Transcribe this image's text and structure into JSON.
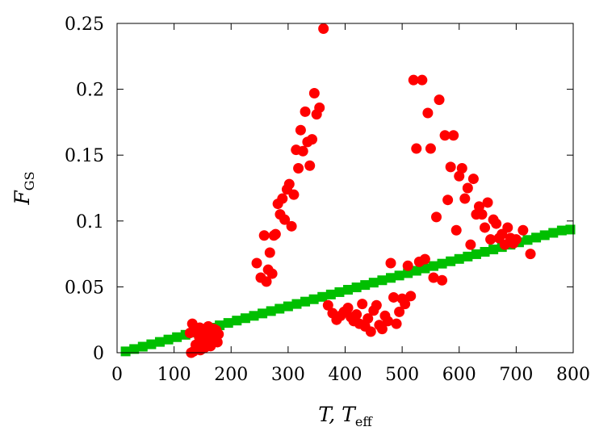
{
  "chart_data": {
    "type": "scatter",
    "title": "",
    "xlabel": "T, T",
    "xlabel_main": "T, T",
    "xlabel_sub": "eff",
    "ylabel": "F",
    "ylabel_main": "F",
    "ylabel_sub": "GS",
    "xlim": [
      0,
      800
    ],
    "ylim": [
      0,
      0.25
    ],
    "xticks": [
      0,
      100,
      200,
      300,
      400,
      500,
      600,
      700,
      800
    ],
    "xtick_labels": [
      "0",
      "100",
      "200",
      "300",
      "400",
      "500",
      "600",
      "700",
      "800"
    ],
    "yticks": [
      0,
      0.05,
      0.1,
      0.15,
      0.2,
      0.25
    ],
    "ytick_labels": [
      "0",
      "0.05",
      "0.1",
      "0.15",
      "0.2",
      "0.25"
    ],
    "grid": false,
    "legend": "none",
    "series": [
      {
        "marker": "square",
        "color": "#00bf00",
        "x": [
          15,
          30,
          45,
          60,
          75,
          90,
          105,
          120,
          135,
          150,
          165,
          180,
          195,
          210,
          225,
          240,
          255,
          270,
          285,
          300,
          315,
          330,
          345,
          360,
          375,
          390,
          405,
          420,
          435,
          450,
          465,
          480,
          495,
          510,
          525,
          540,
          555,
          570,
          585,
          600,
          615,
          630,
          645,
          660,
          675,
          690,
          705,
          720,
          735,
          750,
          765,
          780,
          795
        ],
        "y": [
          0.001,
          0.0028,
          0.0046,
          0.0064,
          0.0082,
          0.01,
          0.0118,
          0.0136,
          0.0154,
          0.0172,
          0.019,
          0.0208,
          0.0226,
          0.0244,
          0.0262,
          0.028,
          0.0298,
          0.0316,
          0.0334,
          0.0352,
          0.037,
          0.0388,
          0.0406,
          0.0424,
          0.0442,
          0.046,
          0.0478,
          0.0496,
          0.0514,
          0.0532,
          0.055,
          0.0568,
          0.0586,
          0.0604,
          0.0622,
          0.064,
          0.0658,
          0.0676,
          0.0694,
          0.0712,
          0.073,
          0.0748,
          0.0766,
          0.0784,
          0.0802,
          0.082,
          0.0838,
          0.0856,
          0.0874,
          0.0892,
          0.091,
          0.0928,
          0.0935
        ]
      },
      {
        "marker": "circle",
        "color": "#ff0000",
        "x": [
          128,
          132,
          136,
          140,
          144,
          148,
          152,
          156,
          160,
          164,
          168,
          172,
          176,
          130,
          138,
          146,
          154,
          162,
          170,
          178,
          134,
          142,
          150,
          158,
          166,
          174,
          145,
          155,
          165,
          245,
          252,
          258,
          262,
          265,
          268,
          272,
          275,
          278,
          282,
          286,
          290,
          294,
          298,
          302,
          306,
          310,
          314,
          318,
          322,
          326,
          330,
          334,
          338,
          342,
          346,
          350,
          355,
          362,
          370,
          378,
          385,
          392,
          398,
          405,
          410,
          415,
          420,
          425,
          430,
          435,
          440,
          445,
          450,
          455,
          460,
          465,
          470,
          475,
          480,
          485,
          490,
          495,
          500,
          505,
          510,
          515,
          520,
          525,
          530,
          535,
          540,
          545,
          550,
          555,
          560,
          565,
          570,
          575,
          580,
          585,
          590,
          595,
          600,
          605,
          610,
          615,
          620,
          625,
          630,
          635,
          640,
          645,
          650,
          655,
          660,
          665,
          670,
          675,
          680,
          685,
          690,
          695,
          700,
          712,
          725
        ],
        "y": [
          0.015,
          0.022,
          0.018,
          0.005,
          0.012,
          0.003,
          0.008,
          0.015,
          0.02,
          0.005,
          0.012,
          0.016,
          0.008,
          0.0,
          0.006,
          0.002,
          0.004,
          0.01,
          0.018,
          0.014,
          0.001,
          0.007,
          0.003,
          0.009,
          0.013,
          0.017,
          0.019,
          0.006,
          0.011,
          0.068,
          0.057,
          0.089,
          0.054,
          0.063,
          0.076,
          0.06,
          0.089,
          0.09,
          0.113,
          0.105,
          0.117,
          0.101,
          0.124,
          0.128,
          0.096,
          0.12,
          0.154,
          0.14,
          0.169,
          0.153,
          0.183,
          0.16,
          0.142,
          0.162,
          0.197,
          0.181,
          0.186,
          0.246,
          0.036,
          0.03,
          0.025,
          0.028,
          0.031,
          0.034,
          0.027,
          0.024,
          0.029,
          0.022,
          0.037,
          0.02,
          0.026,
          0.016,
          0.032,
          0.036,
          0.021,
          0.018,
          0.028,
          0.024,
          0.068,
          0.042,
          0.022,
          0.031,
          0.041,
          0.037,
          0.066,
          0.043,
          0.207,
          0.155,
          0.069,
          0.207,
          0.071,
          0.182,
          0.155,
          0.057,
          0.103,
          0.192,
          0.055,
          0.165,
          0.116,
          0.141,
          0.165,
          0.093,
          0.134,
          0.14,
          0.117,
          0.125,
          0.082,
          0.132,
          0.105,
          0.111,
          0.105,
          0.095,
          0.114,
          0.086,
          0.101,
          0.098,
          0.087,
          0.09,
          0.082,
          0.095,
          0.087,
          0.083,
          0.086,
          0.093,
          0.075
        ]
      }
    ]
  }
}
